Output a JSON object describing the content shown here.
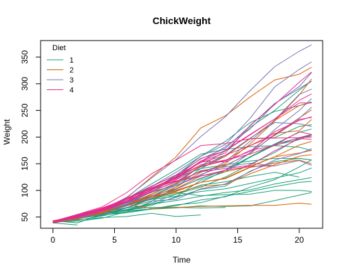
{
  "chart_data": {
    "type": "line",
    "title": "ChickWeight",
    "xlabel": "Time",
    "ylabel": "Weight",
    "xlim": [
      -1.0,
      21.9
    ],
    "ylim": [
      29.0,
      381.0
    ],
    "x_ticks": [
      0,
      5,
      10,
      15,
      20
    ],
    "y_ticks": [
      50,
      100,
      150,
      200,
      250,
      300,
      350
    ],
    "grid": false,
    "legend": {
      "title": "Diet",
      "placement": "top-left",
      "entries": [
        {
          "label": "1",
          "color": "#1B9E77"
        },
        {
          "label": "2",
          "color": "#D95F02"
        },
        {
          "label": "3",
          "color": "#7570B3"
        },
        {
          "label": "4",
          "color": "#E7298A"
        }
      ]
    },
    "x": [
      0,
      2,
      4,
      6,
      8,
      10,
      12,
      14,
      16,
      18,
      20,
      21
    ],
    "series": [
      {
        "diet": "1",
        "color": "#1B9E77",
        "values": [
          42,
          51,
          59,
          64,
          76,
          93,
          106,
          125,
          149,
          171,
          199,
          205
        ]
      },
      {
        "diet": "1",
        "color": "#1B9E77",
        "values": [
          40,
          49,
          58,
          72,
          84,
          103,
          122,
          138,
          162,
          187,
          209,
          215
        ]
      },
      {
        "diet": "1",
        "color": "#1B9E77",
        "values": [
          43,
          39,
          55,
          67,
          84,
          99,
          115,
          138,
          163,
          187,
          198,
          202
        ]
      },
      {
        "diet": "1",
        "color": "#1B9E77",
        "values": [
          42,
          49,
          56,
          67,
          74,
          87,
          102,
          108,
          136,
          154,
          160,
          157
        ]
      },
      {
        "diet": "1",
        "color": "#1B9E77",
        "values": [
          41,
          42,
          48,
          60,
          79,
          106,
          141,
          164,
          197,
          199,
          220,
          223
        ]
      },
      {
        "diet": "1",
        "color": "#1B9E77",
        "values": [
          41,
          49,
          59,
          74,
          97,
          124,
          141,
          148,
          155,
          160,
          160,
          157
        ]
      },
      {
        "diet": "1",
        "color": "#1B9E77",
        "values": [
          41,
          49,
          57,
          71,
          89,
          112,
          146,
          174,
          218,
          250,
          288,
          305
        ]
      },
      {
        "diet": "1",
        "color": "#1B9E77",
        "values": [
          42,
          50,
          61,
          71,
          84,
          93,
          110,
          116,
          126,
          134,
          125,
          null
        ]
      },
      {
        "diet": "1",
        "color": "#1B9E77",
        "values": [
          42,
          51,
          59,
          68,
          85,
          96,
          90,
          92,
          93,
          100,
          100,
          98
        ]
      },
      {
        "diet": "1",
        "color": "#1B9E77",
        "values": [
          41,
          44,
          52,
          63,
          74,
          81,
          89,
          96,
          101,
          112,
          120,
          124
        ]
      },
      {
        "diet": "1",
        "color": "#1B9E77",
        "values": [
          43,
          51,
          63,
          84,
          112,
          139,
          168,
          177,
          182,
          184,
          181,
          175
        ]
      },
      {
        "diet": "1",
        "color": "#1B9E77",
        "values": [
          41,
          49,
          56,
          62,
          72,
          88,
          119,
          135,
          162,
          185,
          195,
          205
        ]
      },
      {
        "diet": "1",
        "color": "#1B9E77",
        "values": [
          41,
          48,
          53,
          60,
          65,
          67,
          71,
          70,
          71,
          81,
          91,
          96
        ]
      },
      {
        "diet": "1",
        "color": "#1B9E77",
        "values": [
          41,
          49,
          62,
          79,
          101,
          128,
          164,
          192,
          227,
          248,
          259,
          266
        ]
      },
      {
        "diet": "1",
        "color": "#1B9E77",
        "values": [
          41,
          49,
          56,
          64,
          68,
          68,
          67,
          68,
          null,
          null,
          null,
          null
        ]
      },
      {
        "diet": "1",
        "color": "#1B9E77",
        "values": [
          41,
          45,
          49,
          51,
          57,
          51,
          54,
          null,
          null,
          null,
          null,
          null
        ]
      },
      {
        "diet": "1",
        "color": "#1B9E77",
        "values": [
          42,
          51,
          61,
          72,
          83,
          89,
          98,
          103,
          113,
          123,
          133,
          142
        ]
      },
      {
        "diet": "1",
        "color": "#1B9E77",
        "values": [
          39,
          35,
          null,
          null,
          null,
          null,
          null,
          null,
          null,
          null,
          null,
          null
        ]
      },
      {
        "diet": "1",
        "color": "#1B9E77",
        "values": [
          43,
          48,
          55,
          62,
          65,
          71,
          82,
          88,
          106,
          120,
          144,
          157
        ]
      },
      {
        "diet": "1",
        "color": "#1B9E77",
        "values": [
          41,
          47,
          54,
          58,
          65,
          73,
          77,
          89,
          98,
          107,
          115,
          117
        ]
      },
      {
        "diet": "2",
        "color": "#D95F02",
        "values": [
          40,
          50,
          62,
          86,
          125,
          163,
          217,
          240,
          275,
          307,
          318,
          331
        ]
      },
      {
        "diet": "2",
        "color": "#D95F02",
        "values": [
          41,
          55,
          64,
          77,
          90,
          95,
          108,
          111,
          131,
          148,
          164,
          167
        ]
      },
      {
        "diet": "2",
        "color": "#D95F02",
        "values": [
          43,
          52,
          61,
          73,
          90,
          103,
          127,
          135,
          145,
          163,
          170,
          175
        ]
      },
      {
        "diet": "2",
        "color": "#D95F02",
        "values": [
          42,
          52,
          58,
          74,
          66,
          68,
          70,
          71,
          72,
          72,
          76,
          74
        ]
      },
      {
        "diet": "2",
        "color": "#D95F02",
        "values": [
          40,
          49,
          62,
          78,
          102,
          124,
          146,
          164,
          197,
          231,
          259,
          265
        ]
      },
      {
        "diet": "2",
        "color": "#D95F02",
        "values": [
          42,
          48,
          57,
          74,
          93,
          114,
          136,
          147,
          169,
          205,
          236,
          251
        ]
      },
      {
        "diet": "2",
        "color": "#D95F02",
        "values": [
          39,
          46,
          58,
          73,
          87,
          100,
          115,
          123,
          144,
          163,
          185,
          192
        ]
      },
      {
        "diet": "2",
        "color": "#D95F02",
        "values": [
          39,
          46,
          58,
          73,
          92,
          114,
          145,
          156,
          184,
          207,
          212,
          233
        ]
      },
      {
        "diet": "2",
        "color": "#D95F02",
        "values": [
          39,
          48,
          59,
          74,
          87,
          106,
          134,
          150,
          187,
          230,
          279,
          309
        ]
      },
      {
        "diet": "2",
        "color": "#D95F02",
        "values": [
          42,
          48,
          59,
          72,
          85,
          98,
          115,
          122,
          143,
          151,
          157,
          150
        ]
      },
      {
        "diet": "3",
        "color": "#7570B3",
        "values": [
          42,
          53,
          62,
          73,
          85,
          102,
          123,
          138,
          170,
          204,
          235,
          256
        ]
      },
      {
        "diet": "3",
        "color": "#7570B3",
        "values": [
          41,
          49,
          65,
          82,
          107,
          129,
          159,
          179,
          221,
          263,
          291,
          305
        ]
      },
      {
        "diet": "3",
        "color": "#7570B3",
        "values": [
          39,
          50,
          63,
          77,
          96,
          111,
          137,
          144,
          151,
          146,
          156,
          147
        ]
      },
      {
        "diet": "3",
        "color": "#7570B3",
        "values": [
          41,
          49,
          63,
          85,
          107,
          134,
          164,
          186,
          235,
          294,
          327,
          341
        ]
      },
      {
        "diet": "3",
        "color": "#7570B3",
        "values": [
          41,
          53,
          64,
          87,
          123,
          158,
          201,
          238,
          287,
          332,
          361,
          373
        ]
      },
      {
        "diet": "3",
        "color": "#7570B3",
        "values": [
          39,
          48,
          61,
          76,
          98,
          116,
          145,
          166,
          198,
          227,
          225,
          220
        ]
      },
      {
        "diet": "3",
        "color": "#7570B3",
        "values": [
          41,
          48,
          56,
          68,
          80,
          83,
          103,
          112,
          135,
          157,
          169,
          178
        ]
      },
      {
        "diet": "3",
        "color": "#7570B3",
        "values": [
          41,
          49,
          61,
          74,
          98,
          109,
          128,
          154,
          192,
          232,
          280,
          290
        ]
      },
      {
        "diet": "3",
        "color": "#7570B3",
        "values": [
          42,
          50,
          61,
          78,
          89,
          109,
          130,
          146,
          170,
          214,
          250,
          272
        ]
      },
      {
        "diet": "3",
        "color": "#7570B3",
        "values": [
          41,
          55,
          66,
          79,
          101,
          120,
          154,
          182,
          215,
          262,
          295,
          321
        ]
      },
      {
        "diet": "4",
        "color": "#E7298A",
        "values": [
          42,
          51,
          66,
          85,
          103,
          124,
          155,
          153,
          175,
          184,
          199,
          204
        ]
      },
      {
        "diet": "4",
        "color": "#E7298A",
        "values": [
          42,
          49,
          63,
          84,
          103,
          126,
          160,
          174,
          204,
          234,
          269,
          281
        ]
      },
      {
        "diet": "4",
        "color": "#E7298A",
        "values": [
          42,
          55,
          69,
          96,
          131,
          157,
          184,
          188,
          197,
          198,
          199,
          200
        ]
      },
      {
        "diet": "4",
        "color": "#E7298A",
        "values": [
          42,
          51,
          65,
          86,
          103,
          118,
          127,
          138,
          145,
          146,
          null,
          null
        ]
      },
      {
        "diet": "4",
        "color": "#E7298A",
        "values": [
          41,
          50,
          61,
          78,
          98,
          117,
          135,
          141,
          147,
          174,
          197,
          196
        ]
      },
      {
        "diet": "4",
        "color": "#E7298A",
        "values": [
          40,
          52,
          62,
          82,
          101,
          120,
          144,
          156,
          173,
          210,
          231,
          238
        ]
      },
      {
        "diet": "4",
        "color": "#E7298A",
        "values": [
          41,
          53,
          66,
          79,
          100,
          123,
          148,
          157,
          168,
          185,
          210,
          205
        ]
      },
      {
        "diet": "4",
        "color": "#E7298A",
        "values": [
          39,
          50,
          62,
          80,
          104,
          125,
          154,
          170,
          222,
          261,
          303,
          322
        ]
      },
      {
        "diet": "4",
        "color": "#E7298A",
        "values": [
          40,
          53,
          64,
          85,
          108,
          128,
          152,
          166,
          184,
          203,
          233,
          237
        ]
      },
      {
        "diet": "4",
        "color": "#E7298A",
        "values": [
          41,
          54,
          67,
          84,
          105,
          122,
          155,
          175,
          205,
          234,
          264,
          264
        ]
      }
    ]
  }
}
